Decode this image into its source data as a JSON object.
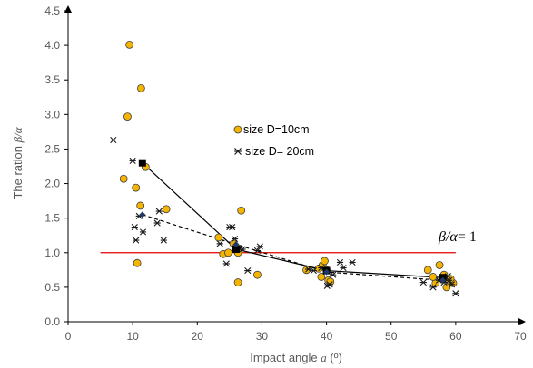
{
  "chart_data": {
    "type": "scatter",
    "title": "",
    "xlabel_text": "Impact angle ",
    "xlabel_symbol": "a",
    "xlabel_unit": " (º)",
    "ylabel_text": "The ration ",
    "ylabel_symbol": "β/α",
    "xlim": [
      0,
      70
    ],
    "ylim": [
      0,
      4.5
    ],
    "xticks": [
      "0",
      "10",
      "20",
      "30",
      "40",
      "50",
      "60",
      "70"
    ],
    "yticks": [
      "0.0",
      "0.5",
      "1.0",
      "1.5",
      "2.0",
      "2.5",
      "3.0",
      "3.5",
      "4.0",
      "4.5"
    ],
    "legend_position": "center",
    "reference_line": {
      "y": 1.0,
      "x_range": [
        5,
        60
      ],
      "color": "#e00000"
    },
    "annotation": {
      "symbol": "β/α",
      "text": "= 1"
    },
    "series": [
      {
        "name": "size D=10cm",
        "marker": "circle",
        "fill": "#f5b400",
        "stroke": "#404040",
        "x": [
          9.5,
          9.2,
          11.3,
          8.6,
          10.5,
          10.7,
          11.2,
          12.0,
          15.2,
          23.3,
          24.0,
          24.8,
          25.6,
          26.0,
          26.8,
          26.3,
          29.3,
          26.3,
          36.9,
          38.8,
          39.4,
          39.7,
          40.0,
          40.3,
          40.6,
          39.2,
          55.7,
          57.5,
          58.2,
          56.9,
          58.1,
          58.6,
          59.0,
          59.6,
          56.5,
          59.2
        ],
        "y": [
          4.01,
          2.97,
          3.38,
          2.07,
          1.94,
          0.85,
          1.68,
          2.24,
          1.63,
          1.22,
          0.98,
          1.0,
          1.13,
          1.08,
          1.61,
          0.57,
          0.68,
          1.0,
          0.75,
          0.77,
          0.82,
          0.88,
          0.75,
          0.6,
          0.58,
          0.65,
          0.75,
          0.82,
          0.68,
          0.56,
          0.62,
          0.5,
          0.6,
          0.56,
          0.65,
          0.62
        ]
      },
      {
        "name": "size D= 20cm",
        "marker": "star",
        "stroke": "#1a1a1a",
        "x": [
          7.0,
          10.0,
          10.3,
          10.5,
          11.0,
          11.6,
          13.8,
          14.1,
          14.8,
          23.5,
          24.5,
          25.0,
          25.4,
          25.8,
          26.5,
          27.0,
          27.8,
          29.7,
          29.3,
          37.2,
          38.0,
          39.2,
          40.1,
          40.5,
          41.0,
          42.1,
          42.6,
          44.0,
          55.0,
          56.5,
          57.4,
          58.2,
          58.8,
          59.4,
          60.0,
          59.0
        ],
        "y": [
          2.63,
          2.33,
          1.37,
          1.18,
          1.53,
          1.3,
          1.43,
          1.6,
          1.18,
          1.13,
          0.84,
          1.37,
          1.37,
          1.2,
          1.07,
          1.05,
          0.74,
          1.09,
          1.03,
          0.76,
          0.74,
          0.78,
          0.52,
          0.54,
          0.68,
          0.86,
          0.78,
          0.86,
          0.57,
          0.5,
          0.6,
          0.57,
          0.66,
          0.54,
          0.41,
          0.6
        ]
      },
      {
        "name": "",
        "type": "line",
        "style": "solid",
        "marker": "square",
        "x": [
          11.5,
          26.0,
          40.0,
          58.0
        ],
        "y": [
          2.3,
          1.05,
          0.74,
          0.64
        ]
      },
      {
        "name": "",
        "type": "line",
        "style": "dashed",
        "marker": "diamond",
        "x": [
          11.5,
          26.0,
          40.0,
          58.0
        ],
        "y": [
          1.55,
          1.12,
          0.72,
          0.6
        ]
      }
    ]
  }
}
